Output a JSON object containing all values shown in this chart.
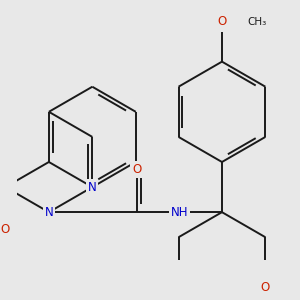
{
  "bg_color": "#e8e8e8",
  "bond_color": "#1a1a1a",
  "bond_width": 1.4,
  "atom_colors": {
    "N": "#0000cc",
    "O": "#cc2200",
    "C": "#1a1a1a"
  },
  "font_size": 8.5,
  "bl": 1.0
}
